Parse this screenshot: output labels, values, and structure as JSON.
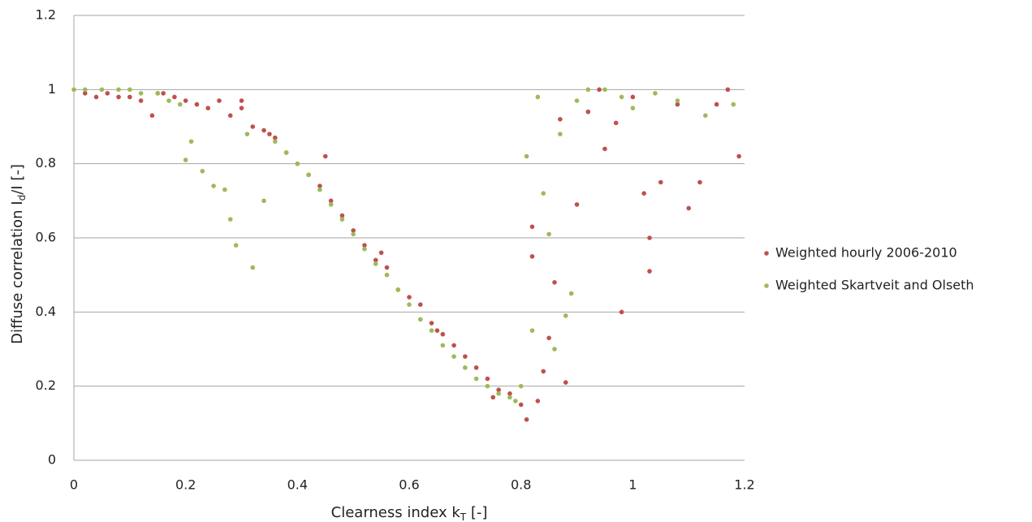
{
  "chart_data": {
    "type": "scatter",
    "xlabel": [
      "Clearness index k",
      "T",
      " [-]"
    ],
    "ylabel": [
      "Diffuse correlation I",
      "d",
      "/I [-]"
    ],
    "xlim": [
      0,
      1.2
    ],
    "xticks": [
      0,
      0.2,
      0.4,
      0.6,
      0.8,
      1,
      1.2
    ],
    "ylim": [
      0,
      1.2
    ],
    "yticks": [
      0,
      0.2,
      0.4,
      0.6,
      0.8,
      1,
      1.2
    ],
    "grid": true,
    "legend": "right",
    "series": [
      {
        "name": "Weighted hourly 2006-2010",
        "color": "#c0504d",
        "x": [
          0.02,
          0.04,
          0.06,
          0.08,
          0.1,
          0.12,
          0.14,
          0.16,
          0.18,
          0.2,
          0.22,
          0.24,
          0.26,
          0.28,
          0.3,
          0.32,
          0.34,
          0.36,
          0.38,
          0.4,
          0.42,
          0.44,
          0.46,
          0.48,
          0.5,
          0.52,
          0.54,
          0.56,
          0.58,
          0.6,
          0.62,
          0.64,
          0.66,
          0.68,
          0.7,
          0.72,
          0.74,
          0.76,
          0.78,
          0.8,
          0.81,
          0.82,
          0.83,
          0.84,
          0.85,
          0.86,
          0.88,
          0.9,
          0.92,
          0.95,
          0.97,
          0.98,
          1.0,
          1.02,
          1.03,
          1.05,
          1.08,
          1.1,
          1.12,
          1.15,
          1.17,
          1.19,
          0.15,
          0.3,
          0.35,
          0.45,
          0.55,
          0.65,
          0.75,
          0.82,
          0.87,
          0.94,
          1.03
        ],
        "values": [
          0.99,
          0.98,
          0.99,
          0.98,
          0.98,
          0.97,
          0.93,
          0.99,
          0.98,
          0.97,
          0.96,
          0.95,
          0.97,
          0.93,
          0.95,
          0.9,
          0.89,
          0.87,
          0.83,
          0.8,
          0.77,
          0.74,
          0.7,
          0.66,
          0.62,
          0.58,
          0.54,
          0.52,
          0.46,
          0.44,
          0.42,
          0.37,
          0.34,
          0.31,
          0.28,
          0.25,
          0.22,
          0.19,
          0.18,
          0.15,
          0.11,
          0.63,
          0.16,
          0.24,
          0.33,
          0.48,
          0.21,
          0.69,
          0.94,
          0.84,
          0.91,
          0.4,
          0.98,
          0.72,
          0.6,
          0.75,
          0.96,
          0.68,
          0.75,
          0.96,
          1.0,
          0.82,
          0.99,
          0.97,
          0.88,
          0.82,
          0.56,
          0.35,
          0.17,
          0.55,
          0.92,
          1.0,
          0.51
        ]
      },
      {
        "name": "Weighted Skartveit and Olseth",
        "color": "#9bbb59",
        "x": [
          0,
          0.02,
          0.05,
          0.08,
          0.1,
          0.12,
          0.15,
          0.17,
          0.19,
          0.2,
          0.21,
          0.23,
          0.25,
          0.27,
          0.28,
          0.29,
          0.31,
          0.32,
          0.34,
          0.36,
          0.38,
          0.4,
          0.42,
          0.44,
          0.46,
          0.48,
          0.5,
          0.52,
          0.54,
          0.56,
          0.58,
          0.6,
          0.62,
          0.64,
          0.66,
          0.68,
          0.7,
          0.72,
          0.74,
          0.76,
          0.78,
          0.79,
          0.8,
          0.81,
          0.82,
          0.83,
          0.84,
          0.85,
          0.86,
          0.87,
          0.88,
          0.89,
          0.9,
          0.92,
          0.95,
          0.98,
          1.0,
          1.04,
          1.08,
          1.13,
          1.18
        ],
        "values": [
          1.0,
          1.0,
          1.0,
          1.0,
          1.0,
          0.99,
          0.99,
          0.97,
          0.96,
          0.81,
          0.86,
          0.78,
          0.74,
          0.73,
          0.65,
          0.58,
          0.88,
          0.52,
          0.7,
          0.86,
          0.83,
          0.8,
          0.77,
          0.73,
          0.69,
          0.65,
          0.61,
          0.57,
          0.53,
          0.5,
          0.46,
          0.42,
          0.38,
          0.35,
          0.31,
          0.28,
          0.25,
          0.22,
          0.2,
          0.18,
          0.17,
          0.16,
          0.2,
          0.82,
          0.35,
          0.98,
          0.72,
          0.61,
          0.3,
          0.88,
          0.39,
          0.45,
          0.97,
          1.0,
          1.0,
          0.98,
          0.95,
          0.99,
          0.97,
          0.93,
          0.96
        ]
      }
    ]
  }
}
